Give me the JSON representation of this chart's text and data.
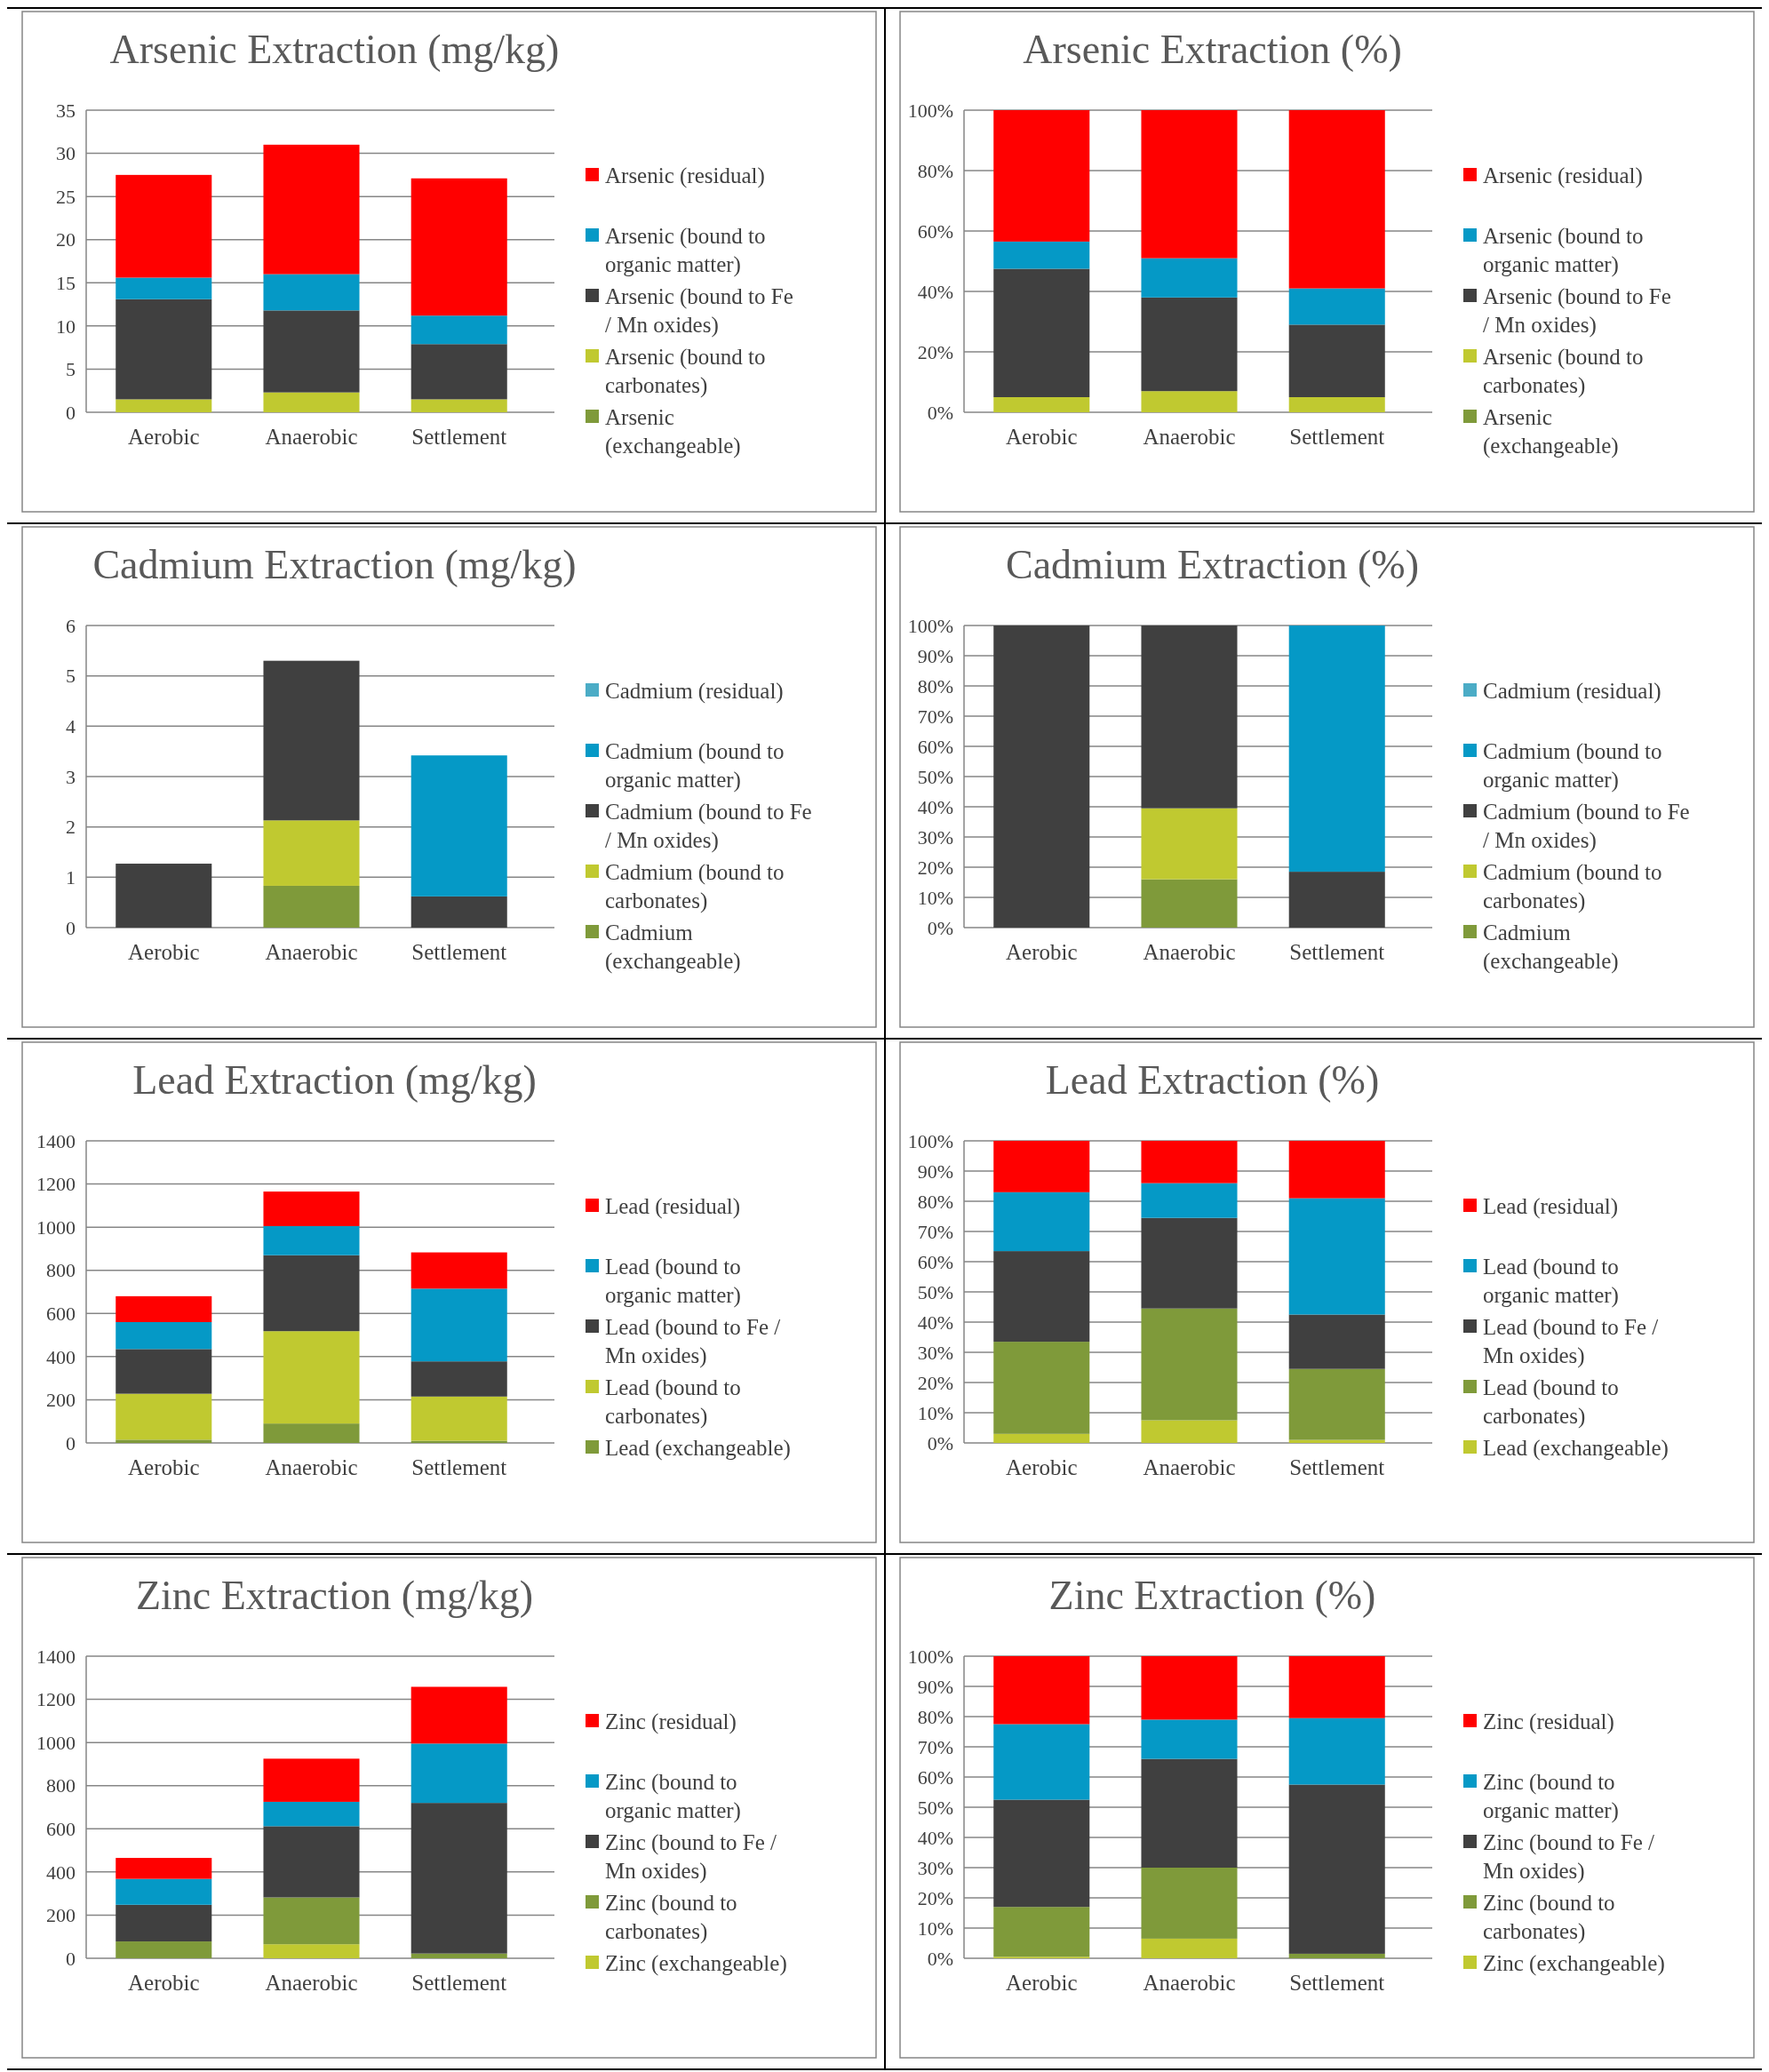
{
  "chart_data": [
    {
      "type": "bar",
      "title": "Arsenic Extraction (mg/kg)",
      "categories": [
        "Aerobic",
        "Anaerobic",
        "Settlement"
      ],
      "stacked": true,
      "legend": "right",
      "grid": "y",
      "ylim": [
        0,
        35
      ],
      "yticks": [
        0,
        5,
        10,
        15,
        20,
        25,
        30,
        35
      ],
      "series": [
        {
          "name": "Arsenic (exchangeable)",
          "color": "#7f9a3a",
          "values": [
            0,
            0,
            0
          ]
        },
        {
          "name": "Arsenic (bound to carbonates)",
          "color": "#c0c930",
          "values": [
            1.5,
            2.3,
            1.5
          ]
        },
        {
          "name": "Arsenic (bound to Fe / Mn oxides)",
          "color": "#404040",
          "values": [
            11.6,
            9.5,
            6.4
          ]
        },
        {
          "name": "Arsenic (bound to organic matter)",
          "color": "#0599c6",
          "values": [
            2.5,
            4.2,
            3.3
          ]
        },
        {
          "name": "Arsenic (residual)",
          "color": "#ff0000",
          "values": [
            11.9,
            15,
            15.9
          ]
        }
      ]
    },
    {
      "type": "bar",
      "title": "Arsenic Extraction (%)",
      "categories": [
        "Aerobic",
        "Anaerobic",
        "Settlement"
      ],
      "stacked": true,
      "legend": "right",
      "grid": "y",
      "ylim": [
        0,
        100
      ],
      "yticks": [
        {
          "value": 0,
          "label": "0%"
        },
        {
          "value": 20,
          "label": "20%"
        },
        {
          "value": 40,
          "label": "40%"
        },
        {
          "value": 60,
          "label": "60%"
        },
        {
          "value": 80,
          "label": "80%"
        },
        {
          "value": 100,
          "label": "100%"
        }
      ],
      "series": [
        {
          "name": "Arsenic (exchangeable)",
          "color": "#7f9a3a",
          "values": [
            0,
            0,
            0
          ]
        },
        {
          "name": "Arsenic (bound to carbonates)",
          "color": "#c0c930",
          "values": [
            5,
            7,
            5
          ]
        },
        {
          "name": "Arsenic (bound to Fe / Mn oxides)",
          "color": "#404040",
          "values": [
            42.5,
            31,
            24
          ]
        },
        {
          "name": "Arsenic (bound to organic matter)",
          "color": "#0599c6",
          "values": [
            9,
            13,
            12
          ]
        },
        {
          "name": "Arsenic (residual)",
          "color": "#ff0000",
          "values": [
            43.5,
            49,
            59
          ]
        }
      ]
    },
    {
      "type": "bar",
      "title": "Cadmium Extraction (mg/kg)",
      "categories": [
        "Aerobic",
        "Anaerobic",
        "Settlement"
      ],
      "stacked": true,
      "legend": "right",
      "grid": "y",
      "ylim": [
        0,
        6
      ],
      "yticks": [
        0,
        1,
        2,
        3,
        4,
        5,
        6
      ],
      "series": [
        {
          "name": "Cadmium (exchangeable)",
          "color": "#7f9a3a",
          "values": [
            0,
            0.83,
            0
          ]
        },
        {
          "name": "Cadmium (bound to carbonates)",
          "color": "#c0c930",
          "values": [
            0,
            1.3,
            0
          ]
        },
        {
          "name": "Cadmium (bound to Fe / Mn oxides)",
          "color": "#404040",
          "values": [
            1.27,
            3.17,
            0.62
          ]
        },
        {
          "name": "Cadmium (bound to organic matter)",
          "color": "#0599c6",
          "values": [
            0,
            0,
            2.8
          ]
        },
        {
          "name": "Cadmium (residual)",
          "color": "#4bacc6",
          "values": [
            0,
            0,
            0
          ]
        }
      ]
    },
    {
      "type": "bar",
      "title": "Cadmium Extraction (%)",
      "categories": [
        "Aerobic",
        "Anaerobic",
        "Settlement"
      ],
      "stacked": true,
      "legend": "right",
      "grid": "y",
      "ylim": [
        0,
        100
      ],
      "yticks": [
        {
          "value": 0,
          "label": "0%"
        },
        {
          "value": 10,
          "label": "10%"
        },
        {
          "value": 20,
          "label": "20%"
        },
        {
          "value": 30,
          "label": "30%"
        },
        {
          "value": 40,
          "label": "40%"
        },
        {
          "value": 50,
          "label": "50%"
        },
        {
          "value": 60,
          "label": "60%"
        },
        {
          "value": 70,
          "label": "70%"
        },
        {
          "value": 80,
          "label": "80%"
        },
        {
          "value": 90,
          "label": "90%"
        },
        {
          "value": 100,
          "label": "100%"
        }
      ],
      "series": [
        {
          "name": "Cadmium (exchangeable)",
          "color": "#7f9a3a",
          "values": [
            0,
            16,
            0
          ]
        },
        {
          "name": "Cadmium (bound to carbonates)",
          "color": "#c0c930",
          "values": [
            0,
            23.5,
            0
          ]
        },
        {
          "name": "Cadmium (bound to Fe / Mn oxides)",
          "color": "#404040",
          "values": [
            100,
            60.5,
            18.5
          ]
        },
        {
          "name": "Cadmium (bound to organic matter)",
          "color": "#0599c6",
          "values": [
            0,
            0,
            81.5
          ]
        },
        {
          "name": "Cadmium (residual)",
          "color": "#4bacc6",
          "values": [
            0,
            0,
            0
          ]
        }
      ]
    },
    {
      "type": "bar",
      "title": "Lead Extraction (mg/kg)",
      "categories": [
        "Aerobic",
        "Anaerobic",
        "Settlement"
      ],
      "stacked": true,
      "legend": "right",
      "grid": "y",
      "ylim": [
        0,
        1400
      ],
      "yticks": [
        0,
        200,
        400,
        600,
        800,
        1000,
        1200,
        1400
      ],
      "series": [
        {
          "name": "Lead (exchangeable)",
          "color": "#7f9a3a",
          "values": [
            15,
            90,
            10
          ]
        },
        {
          "name": "Lead (bound to carbonates)",
          "color": "#c0c930",
          "values": [
            213,
            428,
            205
          ]
        },
        {
          "name": "Lead (bound to Fe / Mn oxides)",
          "color": "#404040",
          "values": [
            207,
            352,
            163
          ]
        },
        {
          "name": "Lead (bound to organic matter)",
          "color": "#0599c6",
          "values": [
            125,
            135,
            337
          ]
        },
        {
          "name": "Lead (residual)",
          "color": "#ff0000",
          "values": [
            120,
            160,
            168
          ]
        }
      ]
    },
    {
      "type": "bar",
      "title": "Lead Extraction (%)",
      "categories": [
        "Aerobic",
        "Anaerobic",
        "Settlement"
      ],
      "stacked": true,
      "legend": "right",
      "grid": "y",
      "ylim": [
        0,
        100
      ],
      "yticks": [
        {
          "value": 0,
          "label": "0%"
        },
        {
          "value": 10,
          "label": "10%"
        },
        {
          "value": 20,
          "label": "20%"
        },
        {
          "value": 30,
          "label": "30%"
        },
        {
          "value": 40,
          "label": "40%"
        },
        {
          "value": 50,
          "label": "50%"
        },
        {
          "value": 60,
          "label": "60%"
        },
        {
          "value": 70,
          "label": "70%"
        },
        {
          "value": 80,
          "label": "80%"
        },
        {
          "value": 90,
          "label": "90%"
        },
        {
          "value": 100,
          "label": "100%"
        }
      ],
      "series": [
        {
          "name": "Lead (exchangeable)",
          "color": "#c0c930",
          "values": [
            3,
            7.5,
            1
          ]
        },
        {
          "name": "Lead (bound to carbonates)",
          "color": "#7f9a3a",
          "values": [
            30.5,
            37,
            23.5
          ]
        },
        {
          "name": "Lead (bound to Fe / Mn oxides)",
          "color": "#404040",
          "values": [
            30,
            30,
            18
          ]
        },
        {
          "name": "Lead (bound to organic matter)",
          "color": "#0599c6",
          "values": [
            19.5,
            11.5,
            38.5
          ]
        },
        {
          "name": "Lead (residual)",
          "color": "#ff0000",
          "values": [
            17,
            14,
            19
          ]
        }
      ]
    },
    {
      "type": "bar",
      "title": "Zinc Extraction (mg/kg)",
      "categories": [
        "Aerobic",
        "Anaerobic",
        "Settlement"
      ],
      "stacked": true,
      "legend": "right",
      "grid": "y",
      "ylim": [
        0,
        1400
      ],
      "yticks": [
        0,
        200,
        400,
        600,
        800,
        1000,
        1200,
        1400
      ],
      "series": [
        {
          "name": "Zinc (exchangeable)",
          "color": "#c0c930",
          "values": [
            0,
            65,
            0
          ]
        },
        {
          "name": "Zinc (bound to carbonates)",
          "color": "#7f9a3a",
          "values": [
            78,
            217,
            22
          ]
        },
        {
          "name": "Zinc (bound to Fe / Mn oxides)",
          "color": "#404040",
          "values": [
            170,
            330,
            698
          ]
        },
        {
          "name": "Zinc (bound to organic matter)",
          "color": "#0599c6",
          "values": [
            120,
            113,
            275
          ]
        },
        {
          "name": "Zinc (residual)",
          "color": "#ff0000",
          "values": [
            97,
            200,
            263
          ]
        }
      ]
    },
    {
      "type": "bar",
      "title": "Zinc Extraction (%)",
      "categories": [
        "Aerobic",
        "Anaerobic",
        "Settlement"
      ],
      "stacked": true,
      "legend": "right",
      "grid": "y",
      "ylim": [
        0,
        100
      ],
      "yticks": [
        {
          "value": 0,
          "label": "0%"
        },
        {
          "value": 10,
          "label": "10%"
        },
        {
          "value": 20,
          "label": "20%"
        },
        {
          "value": 30,
          "label": "30%"
        },
        {
          "value": 40,
          "label": "40%"
        },
        {
          "value": 50,
          "label": "50%"
        },
        {
          "value": 60,
          "label": "60%"
        },
        {
          "value": 70,
          "label": "70%"
        },
        {
          "value": 80,
          "label": "80%"
        },
        {
          "value": 90,
          "label": "90%"
        },
        {
          "value": 100,
          "label": "100%"
        }
      ],
      "series": [
        {
          "name": "Zinc (exchangeable)",
          "color": "#c0c930",
          "values": [
            0.5,
            6.5,
            0
          ]
        },
        {
          "name": "Zinc (bound to carbonates)",
          "color": "#7f9a3a",
          "values": [
            16.5,
            23.5,
            1.5
          ]
        },
        {
          "name": "Zinc (bound to Fe / Mn oxides)",
          "color": "#404040",
          "values": [
            35.5,
            36,
            56
          ]
        },
        {
          "name": "Zinc (bound to organic matter)",
          "color": "#0599c6",
          "values": [
            25,
            13,
            22
          ]
        },
        {
          "name": "Zinc (residual)",
          "color": "#ff0000",
          "values": [
            22.5,
            21,
            20.5
          ]
        }
      ]
    }
  ]
}
